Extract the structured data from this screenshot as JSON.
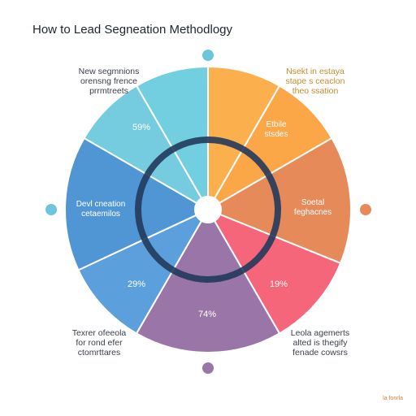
{
  "title": "How to Lead Segneation Methodlogy",
  "outer_labels": {
    "top_left": [
      "New segmnions",
      "orensng frence",
      "prrmtreets"
    ],
    "top_right": [
      "Nsekt in estaya",
      "stape s ceaclon",
      "theo ssation"
    ],
    "bottom_left": [
      "Texrer ofeeola",
      "for rond efer",
      "ctomrttares"
    ],
    "bottom_right": [
      "Leola agemerts",
      "alted is thegify",
      "fenade cowsrs"
    ]
  },
  "segments": [
    {
      "label": "",
      "color": "#72cfe0"
    },
    {
      "label": "",
      "color": "#fbb04d"
    },
    {
      "label": "Etbile stsdes",
      "color": "#fba647"
    },
    {
      "label": "Soetal feghacnes",
      "color": "#e68a5a"
    },
    {
      "label": "19%",
      "color": "#f5667a"
    },
    {
      "label": "74%",
      "color": "#9a76a8"
    },
    {
      "label": "29%",
      "color": "#5b9fdc"
    },
    {
      "label": "Devl cneation cetaemilos",
      "color": "#5196d4"
    },
    {
      "label": "59%",
      "color": "#76ccdf"
    }
  ],
  "dots": {
    "top": "#6cc4dd",
    "left": "#6cc4dd",
    "right": "#e68a5a",
    "bottom": "#9a76a8"
  },
  "ring_color": "#223a5c",
  "footnote": "la fonrla"
}
